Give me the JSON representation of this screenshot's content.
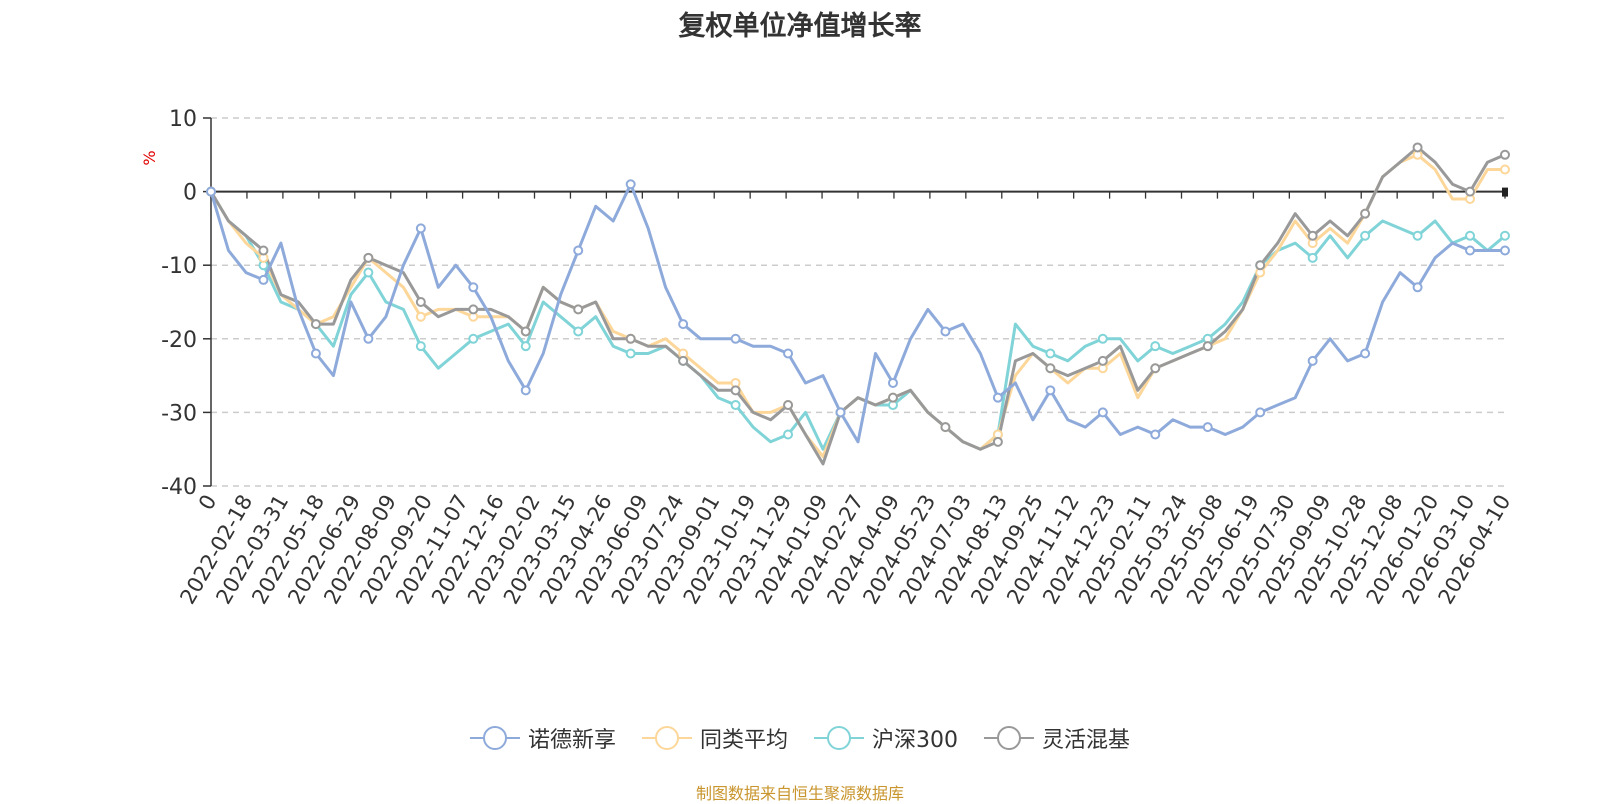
{
  "chart_data": {
    "type": "line",
    "title": "复权单位净值增长率",
    "ylabel": "%",
    "xlabel": "",
    "ylim": [
      -40,
      10
    ],
    "yticks": [
      10,
      0,
      -10,
      -20,
      -30,
      -40
    ],
    "tick_labels": [
      "0",
      "2022-02-18",
      "2022-03-31",
      "2022-05-18",
      "2022-06-29",
      "2022-08-09",
      "2022-09-20",
      "2022-11-07",
      "2022-12-16",
      "2023-02-02",
      "2023-03-15",
      "2023-04-26",
      "2023-06-09",
      "2023-07-24",
      "2023-09-01",
      "2023-10-19",
      "2023-11-29",
      "2024-01-09",
      "2024-02-27",
      "2024-04-09",
      "2024-05-23",
      "2024-07-03",
      "2024-08-13",
      "2024-09-25",
      "2024-11-12",
      "2024-12-23",
      "2025-02-11",
      "2025-03-24",
      "2025-05-08",
      "2025-06-19",
      "2025-07-30",
      "2025-09-09",
      "2025-10-28",
      "2025-12-08",
      "2026-01-20",
      "2026-03-10",
      "2026-04-10"
    ],
    "legend_position": "bottom",
    "grid": true,
    "series": [
      {
        "name": "诺德新享",
        "color": "#8eaadb",
        "values": [
          0,
          -8,
          -11,
          -12,
          -7,
          -16,
          -22,
          -25,
          -15,
          -20,
          -17,
          -10,
          -5,
          -13,
          -10,
          -13,
          -17,
          -23,
          -27,
          -22,
          -14,
          -8,
          -2,
          -4,
          1,
          -5,
          -13,
          -18,
          -20,
          -20,
          -20,
          -21,
          -21,
          -22,
          -26,
          -25,
          -30,
          -34,
          -22,
          -26,
          -20,
          -16,
          -19,
          -18,
          -22,
          -28,
          -26,
          -31,
          -27,
          -31,
          -32,
          -30,
          -33,
          -32,
          -33,
          -31,
          -32,
          -32,
          -33,
          -32,
          -30,
          -29,
          -28,
          -23,
          -20,
          -23,
          -22,
          -15,
          -11,
          -13,
          -9,
          -7,
          -8,
          -8,
          -8
        ]
      },
      {
        "name": "同类平均",
        "color": "#fdd79a",
        "values": [
          0,
          -4,
          -7,
          -9,
          -14,
          -16,
          -18,
          -17,
          -13,
          -9,
          -11,
          -13,
          -17,
          -16,
          -16,
          -17,
          -17,
          -17,
          -19,
          -13,
          -15,
          -16,
          -15,
          -19,
          -20,
          -21,
          -20,
          -22,
          -24,
          -26,
          -26,
          -30,
          -30,
          -29,
          -33,
          -36,
          -30,
          -28,
          -29,
          -28,
          -27,
          -30,
          -32,
          -34,
          -35,
          -33,
          -25,
          -22,
          -24,
          -26,
          -24,
          -24,
          -22,
          -28,
          -24,
          -23,
          -22,
          -21,
          -20,
          -16,
          -11,
          -8,
          -4,
          -7,
          -5,
          -7,
          -3,
          2,
          4,
          5,
          3,
          -1,
          -1,
          3,
          3
        ]
      },
      {
        "name": "沪深300",
        "color": "#80d4d8",
        "values": [
          0,
          -4,
          -6,
          -10,
          -15,
          -16,
          -18,
          -21,
          -14,
          -11,
          -15,
          -16,
          -21,
          -24,
          -22,
          -20,
          -19,
          -18,
          -21,
          -15,
          -17,
          -19,
          -17,
          -21,
          -22,
          -22,
          -21,
          -23,
          -25,
          -28,
          -29,
          -32,
          -34,
          -33,
          -30,
          -35,
          -30,
          -28,
          -29,
          -29,
          -27,
          -30,
          -32,
          -34,
          -35,
          -33,
          -18,
          -21,
          -22,
          -23,
          -21,
          -20,
          -20,
          -23,
          -21,
          -22,
          -21,
          -20,
          -18,
          -15,
          -10,
          -8,
          -7,
          -9,
          -6,
          -9,
          -6,
          -4,
          -5,
          -6,
          -4,
          -7,
          -6,
          -8,
          -6
        ]
      },
      {
        "name": "灵活混基",
        "color": "#999999",
        "values": [
          0,
          -4,
          -6,
          -8,
          -14,
          -15,
          -18,
          -18,
          -12,
          -9,
          -10,
          -11,
          -15,
          -17,
          -16,
          -16,
          -16,
          -17,
          -19,
          -13,
          -15,
          -16,
          -15,
          -20,
          -20,
          -21,
          -21,
          -23,
          -25,
          -27,
          -27,
          -30,
          -31,
          -29,
          -33,
          -37,
          -30,
          -28,
          -29,
          -28,
          -27,
          -30,
          -32,
          -34,
          -35,
          -34,
          -23,
          -22,
          -24,
          -25,
          -24,
          -23,
          -21,
          -27,
          -24,
          -23,
          -22,
          -21,
          -19,
          -16,
          -10,
          -7,
          -3,
          -6,
          -4,
          -6,
          -3,
          2,
          4,
          6,
          4,
          1,
          0,
          4,
          5
        ]
      }
    ]
  },
  "footer": {
    "source": "制图数据来自恒生聚源数据库"
  }
}
